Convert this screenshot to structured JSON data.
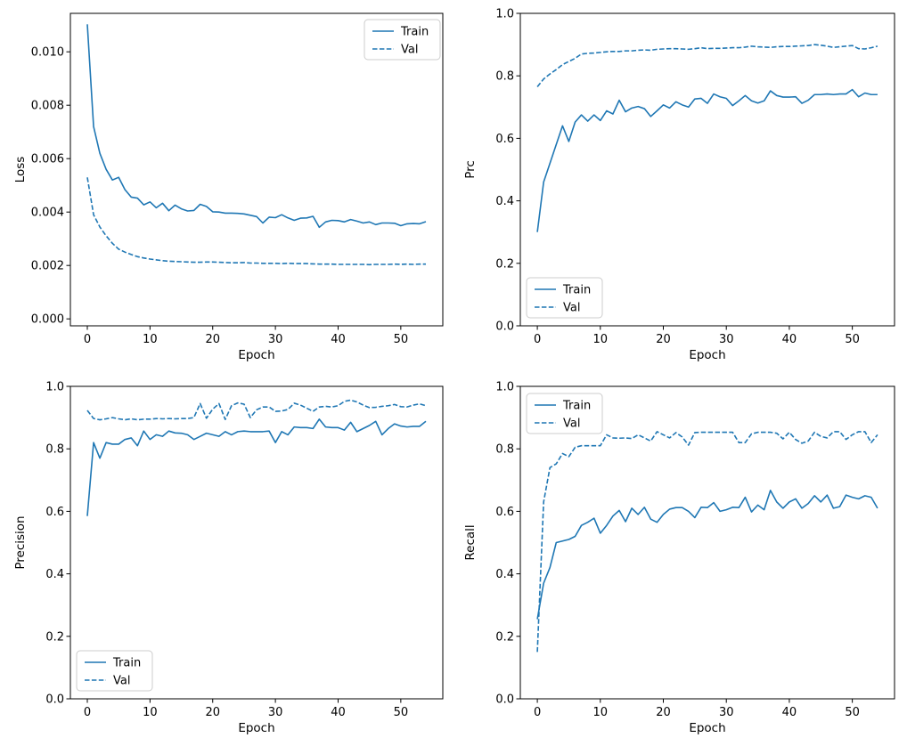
{
  "figure": {
    "background": "#ffffff",
    "line_color": "#1f77b4",
    "text_color": "#000000",
    "spine_color": "#000000",
    "legend_border_color": "#cccccc",
    "legend_bg_color": "#ffffff"
  },
  "legend_labels": {
    "train": "Train",
    "val": "Val"
  },
  "chart_data": [
    {
      "type": "line",
      "name": "loss",
      "xlabel": "Epoch",
      "ylabel": "Loss",
      "xlim": [
        -2.7,
        56.7
      ],
      "ylim": [
        -0.00026,
        0.01144
      ],
      "xticks": {
        "values": [
          0,
          10,
          20,
          30,
          40,
          50
        ],
        "labels": [
          "0",
          "10",
          "20",
          "30",
          "40",
          "50"
        ]
      },
      "yticks": {
        "values": [
          0,
          0.002,
          0.004,
          0.006,
          0.008,
          0.01
        ],
        "labels": [
          "0.000",
          "0.002",
          "0.004",
          "0.006",
          "0.008",
          "0.010"
        ]
      },
      "legend_position": "upper right",
      "series": [
        {
          "name": "Train",
          "style": "solid",
          "values": [
            0.01103,
            0.0072,
            0.0062,
            0.0056,
            0.0052,
            0.0053,
            0.00484,
            0.00456,
            0.00452,
            0.00427,
            0.00438,
            0.00416,
            0.00433,
            0.00405,
            0.00426,
            0.00412,
            0.00404,
            0.00406,
            0.00429,
            0.00421,
            0.00401,
            0.004,
            0.00396,
            0.00396,
            0.00395,
            0.00393,
            0.00388,
            0.00383,
            0.00359,
            0.00381,
            0.00379,
            0.0039,
            0.00378,
            0.00369,
            0.00377,
            0.00378,
            0.00384,
            0.00343,
            0.00363,
            0.00369,
            0.00368,
            0.00363,
            0.00372,
            0.00366,
            0.00359,
            0.00363,
            0.00353,
            0.00359,
            0.00359,
            0.00358,
            0.00349,
            0.00356,
            0.00357,
            0.00356,
            0.00364
          ]
        },
        {
          "name": "Val",
          "style": "dashed",
          "values": [
            0.0053,
            0.0039,
            0.00344,
            0.00311,
            0.00283,
            0.00261,
            0.0025,
            0.00241,
            0.00233,
            0.00228,
            0.00224,
            0.00221,
            0.00218,
            0.00216,
            0.00215,
            0.00214,
            0.00213,
            0.00212,
            0.00212,
            0.00213,
            0.00213,
            0.00212,
            0.00211,
            0.0021,
            0.0021,
            0.00211,
            0.00209,
            0.00209,
            0.00208,
            0.00208,
            0.00208,
            0.00207,
            0.00208,
            0.00207,
            0.00207,
            0.00207,
            0.00206,
            0.00205,
            0.00205,
            0.00205,
            0.00204,
            0.00204,
            0.00204,
            0.00204,
            0.00204,
            0.00203,
            0.00204,
            0.00204,
            0.00204,
            0.00205,
            0.00204,
            0.00205,
            0.00204,
            0.00205,
            0.00205
          ]
        }
      ]
    },
    {
      "type": "line",
      "name": "prc",
      "xlabel": "Epoch",
      "ylabel": "Prc",
      "xlim": [
        -2.7,
        56.7
      ],
      "ylim": [
        0,
        1
      ],
      "xticks": {
        "values": [
          0,
          10,
          20,
          30,
          40,
          50
        ],
        "labels": [
          "0",
          "10",
          "20",
          "30",
          "40",
          "50"
        ]
      },
      "yticks": {
        "values": [
          0,
          0.2,
          0.4,
          0.6,
          0.8,
          1.0
        ],
        "labels": [
          "0.0",
          "0.2",
          "0.4",
          "0.6",
          "0.8",
          "1.0"
        ]
      },
      "legend_position": "lower left",
      "series": [
        {
          "name": "Train",
          "style": "solid",
          "values": [
            0.3,
            0.46,
            0.52,
            0.58,
            0.64,
            0.59,
            0.652,
            0.675,
            0.655,
            0.675,
            0.657,
            0.688,
            0.678,
            0.722,
            0.685,
            0.697,
            0.702,
            0.695,
            0.67,
            0.688,
            0.707,
            0.697,
            0.717,
            0.707,
            0.7,
            0.726,
            0.728,
            0.712,
            0.742,
            0.733,
            0.728,
            0.705,
            0.72,
            0.737,
            0.72,
            0.713,
            0.72,
            0.752,
            0.737,
            0.732,
            0.732,
            0.733,
            0.712,
            0.722,
            0.74,
            0.74,
            0.742,
            0.74,
            0.742,
            0.742,
            0.756,
            0.733,
            0.745,
            0.74,
            0.74
          ]
        },
        {
          "name": "Val",
          "style": "dashed",
          "values": [
            0.765,
            0.79,
            0.806,
            0.82,
            0.836,
            0.846,
            0.856,
            0.87,
            0.872,
            0.873,
            0.875,
            0.877,
            0.878,
            0.878,
            0.88,
            0.88,
            0.882,
            0.883,
            0.882,
            0.885,
            0.886,
            0.887,
            0.887,
            0.886,
            0.885,
            0.887,
            0.89,
            0.887,
            0.888,
            0.888,
            0.889,
            0.89,
            0.89,
            0.892,
            0.895,
            0.893,
            0.892,
            0.891,
            0.893,
            0.894,
            0.894,
            0.895,
            0.896,
            0.897,
            0.9,
            0.898,
            0.895,
            0.891,
            0.893,
            0.895,
            0.897,
            0.887,
            0.886,
            0.89,
            0.895
          ]
        }
      ]
    },
    {
      "type": "line",
      "name": "precision",
      "xlabel": "Epoch",
      "ylabel": "Precision",
      "xlim": [
        -2.7,
        56.7
      ],
      "ylim": [
        0,
        1
      ],
      "xticks": {
        "values": [
          0,
          10,
          20,
          30,
          40,
          50
        ],
        "labels": [
          "0",
          "10",
          "20",
          "30",
          "40",
          "50"
        ]
      },
      "yticks": {
        "values": [
          0,
          0.2,
          0.4,
          0.6,
          0.8,
          1.0
        ],
        "labels": [
          "0.0",
          "0.2",
          "0.4",
          "0.6",
          "0.8",
          "1.0"
        ]
      },
      "legend_position": "lower left",
      "series": [
        {
          "name": "Train",
          "style": "solid",
          "values": [
            0.585,
            0.82,
            0.77,
            0.82,
            0.815,
            0.815,
            0.83,
            0.835,
            0.81,
            0.857,
            0.83,
            0.845,
            0.84,
            0.857,
            0.851,
            0.85,
            0.845,
            0.83,
            0.84,
            0.85,
            0.845,
            0.84,
            0.855,
            0.845,
            0.855,
            0.857,
            0.855,
            0.855,
            0.855,
            0.857,
            0.82,
            0.855,
            0.845,
            0.87,
            0.868,
            0.868,
            0.865,
            0.895,
            0.87,
            0.868,
            0.868,
            0.86,
            0.885,
            0.855,
            0.865,
            0.875,
            0.888,
            0.845,
            0.865,
            0.88,
            0.873,
            0.87,
            0.872,
            0.872,
            0.888
          ]
        },
        {
          "name": "Val",
          "style": "dashed",
          "values": [
            0.923,
            0.897,
            0.893,
            0.896,
            0.9,
            0.896,
            0.893,
            0.896,
            0.893,
            0.895,
            0.895,
            0.897,
            0.896,
            0.897,
            0.896,
            0.897,
            0.897,
            0.9,
            0.945,
            0.898,
            0.927,
            0.945,
            0.894,
            0.938,
            0.947,
            0.943,
            0.9,
            0.925,
            0.934,
            0.934,
            0.92,
            0.921,
            0.926,
            0.946,
            0.94,
            0.93,
            0.92,
            0.934,
            0.936,
            0.934,
            0.938,
            0.952,
            0.956,
            0.95,
            0.94,
            0.932,
            0.933,
            0.936,
            0.938,
            0.942,
            0.935,
            0.934,
            0.94,
            0.944,
            0.938
          ]
        }
      ]
    },
    {
      "type": "line",
      "name": "recall",
      "xlabel": "Epoch",
      "ylabel": "Recall",
      "xlim": [
        -2.7,
        56.7
      ],
      "ylim": [
        0,
        1
      ],
      "xticks": {
        "values": [
          0,
          10,
          20,
          30,
          40,
          50
        ],
        "labels": [
          "0",
          "10",
          "20",
          "30",
          "40",
          "50"
        ]
      },
      "yticks": {
        "values": [
          0,
          0.2,
          0.4,
          0.6,
          0.8,
          1.0
        ],
        "labels": [
          "0.0",
          "0.2",
          "0.4",
          "0.6",
          "0.8",
          "1.0"
        ]
      },
      "legend_position": "upper left",
      "series": [
        {
          "name": "Train",
          "style": "solid",
          "values": [
            0.255,
            0.37,
            0.42,
            0.5,
            0.505,
            0.51,
            0.52,
            0.555,
            0.565,
            0.578,
            0.53,
            0.555,
            0.585,
            0.603,
            0.567,
            0.61,
            0.59,
            0.613,
            0.575,
            0.565,
            0.59,
            0.607,
            0.612,
            0.612,
            0.6,
            0.58,
            0.613,
            0.612,
            0.628,
            0.6,
            0.605,
            0.613,
            0.612,
            0.645,
            0.598,
            0.62,
            0.605,
            0.667,
            0.63,
            0.61,
            0.63,
            0.64,
            0.61,
            0.625,
            0.65,
            0.63,
            0.652,
            0.61,
            0.615,
            0.652,
            0.645,
            0.64,
            0.65,
            0.645,
            0.61
          ]
        },
        {
          "name": "Val",
          "style": "dashed",
          "values": [
            0.15,
            0.63,
            0.74,
            0.752,
            0.785,
            0.775,
            0.805,
            0.81,
            0.81,
            0.81,
            0.81,
            0.845,
            0.835,
            0.834,
            0.835,
            0.833,
            0.845,
            0.835,
            0.825,
            0.855,
            0.845,
            0.835,
            0.852,
            0.838,
            0.812,
            0.852,
            0.853,
            0.853,
            0.853,
            0.853,
            0.853,
            0.853,
            0.82,
            0.82,
            0.848,
            0.853,
            0.853,
            0.853,
            0.85,
            0.832,
            0.853,
            0.83,
            0.818,
            0.825,
            0.853,
            0.84,
            0.835,
            0.855,
            0.855,
            0.83,
            0.845,
            0.855,
            0.855,
            0.82,
            0.845
          ]
        }
      ]
    }
  ]
}
